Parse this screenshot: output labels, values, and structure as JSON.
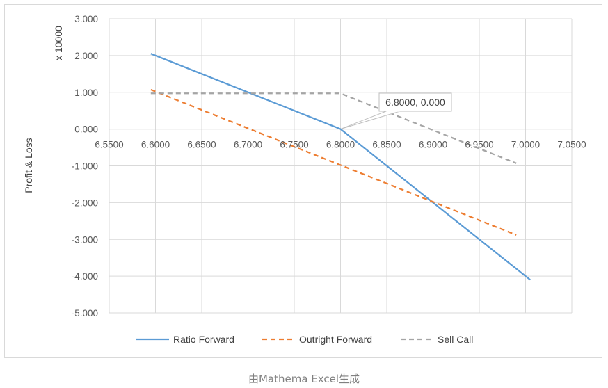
{
  "chart_data": {
    "type": "line",
    "ylabel": "Profit & Loss",
    "yscale_label": "x 10000",
    "xlim": [
      6.55,
      7.05
    ],
    "ylim": [
      -5,
      3
    ],
    "x_ticks": [
      "6.5500",
      "6.6000",
      "6.6500",
      "6.7000",
      "6.7500",
      "6.8000",
      "6.8500",
      "6.9000",
      "6.9500",
      "7.0000",
      "7.0500"
    ],
    "y_ticks": [
      "3.000",
      "2.000",
      "1.000",
      "0.000",
      "-1.000",
      "-2.000",
      "-3.000",
      "-4.000",
      "-5.000"
    ],
    "grid": true,
    "legend_position": "bottom",
    "series": [
      {
        "name": "Ratio Forward",
        "color": "#5b9bd5",
        "dash": "solid",
        "x": [
          6.595,
          6.8,
          7.005
        ],
        "y": [
          2.05,
          0.0,
          -4.1
        ]
      },
      {
        "name": "Outright Forward",
        "color": "#ed7d31",
        "dash": "dashed",
        "x": [
          6.595,
          6.99
        ],
        "y": [
          1.07,
          -2.88
        ]
      },
      {
        "name": "Sell Call",
        "color": "#a5a5a5",
        "dash": "dashed",
        "x": [
          6.595,
          6.8,
          6.99
        ],
        "y": [
          0.97,
          0.97,
          -0.93
        ]
      }
    ],
    "annotation": {
      "text": "6.8000, 0.000",
      "x": 6.8,
      "y": 0.0
    }
  },
  "caption": "由Mathema Excel生成"
}
